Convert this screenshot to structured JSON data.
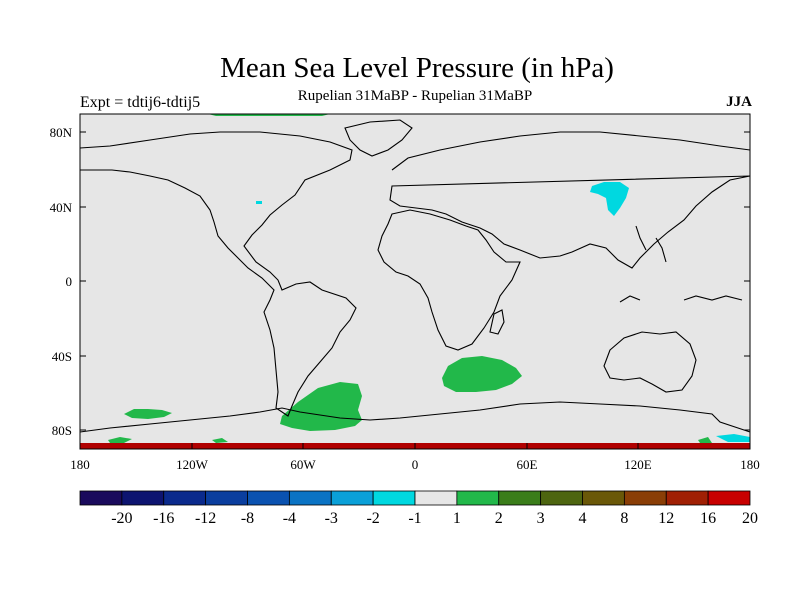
{
  "header": {
    "title": "Mean Sea Level Pressure (in hPa)",
    "left": "Expt = tdtij6-tdtij5",
    "center": "Rupelian  31MaBP - Rupelian  31MaBP",
    "right": "JJA"
  },
  "axes": {
    "lat_labels": [
      "80N",
      "40N",
      "0",
      "40S",
      "80S"
    ],
    "lon_labels": [
      "180",
      "120W",
      "60W",
      "0",
      "60E",
      "120E",
      "180"
    ]
  },
  "colorbar": {
    "colors": [
      "#1a0a5c",
      "#0d1470",
      "#0a2a8c",
      "#0a3e9e",
      "#0a52b0",
      "#0a73c4",
      "#0aa0d8",
      "#00d8e0",
      "#e6e6e6",
      "#22b84a",
      "#3a7d1a",
      "#4d6510",
      "#6a5808",
      "#8a3e06",
      "#a02004",
      "#c80000"
    ],
    "labels": [
      "-20",
      "-16",
      "-12",
      "-8",
      "-4",
      "-3",
      "-2",
      "-1",
      "1",
      "2",
      "3",
      "4",
      "8",
      "12",
      "16",
      "20"
    ]
  },
  "map": {
    "background": "#e6e6e6",
    "positive_color": "#22b84a",
    "negative_color": "#00d8e0",
    "edge_color": "#b00000"
  }
}
